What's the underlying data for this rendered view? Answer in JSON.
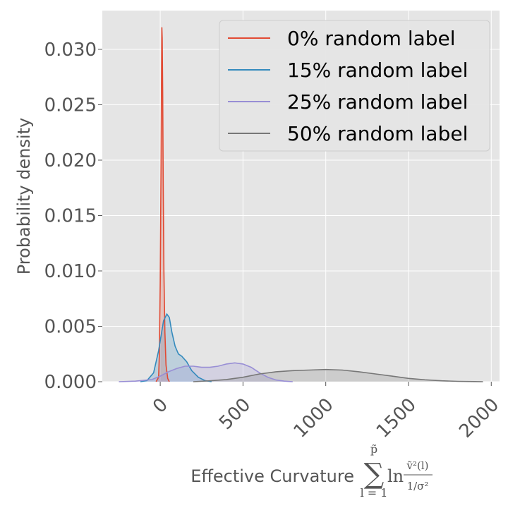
{
  "chart_data": {
    "type": "area",
    "xlabel": "Effective Curvature",
    "xlabel_math": {
      "sum_symbol": "∑",
      "sum_upper": "p̃",
      "sum_lower": "l = 1",
      "ln": "ln",
      "frac_num": "ṽ²(l)",
      "frac_den": "1/σ²"
    },
    "ylabel": "Probability density",
    "xlim": [
      -350,
      2050
    ],
    "ylim": [
      0,
      0.0335
    ],
    "x_ticks": [
      0,
      500,
      1000,
      1500,
      2000
    ],
    "x_tick_labels": [
      "0",
      "500",
      "1000",
      "1500",
      "2000"
    ],
    "y_ticks": [
      0,
      0.005,
      0.01,
      0.015,
      0.02,
      0.025,
      0.03
    ],
    "y_tick_labels": [
      "0.000",
      "0.005",
      "0.010",
      "0.015",
      "0.020",
      "0.025",
      "0.030"
    ],
    "grid": true,
    "legend_position": "top-right",
    "series": [
      {
        "name": "0% random label",
        "color": "#E24A33",
        "x": [
          -25,
          -10,
          -5,
          0,
          5,
          8,
          10,
          12,
          15,
          18,
          22,
          28,
          35,
          45,
          55
        ],
        "y": [
          0,
          0.0004,
          0.0025,
          0.009,
          0.02,
          0.028,
          0.032,
          0.031,
          0.026,
          0.018,
          0.01,
          0.0045,
          0.0015,
          0.0003,
          0
        ]
      },
      {
        "name": "15% random label",
        "color": "#348ABD",
        "x": [
          -120,
          -80,
          -40,
          -10,
          20,
          40,
          55,
          70,
          90,
          110,
          130,
          160,
          190,
          230,
          270,
          310
        ],
        "y": [
          0,
          0.0001,
          0.0008,
          0.0028,
          0.0055,
          0.0061,
          0.0058,
          0.0045,
          0.0032,
          0.0025,
          0.0023,
          0.0018,
          0.001,
          0.0004,
          0.0001,
          0
        ]
      },
      {
        "name": "25% random label",
        "color": "#988ED5",
        "x": [
          -250,
          -150,
          -50,
          0,
          50,
          100,
          150,
          200,
          250,
          300,
          350,
          400,
          450,
          500,
          550,
          600,
          650,
          700,
          750,
          800
        ],
        "y": [
          0,
          5e-05,
          0.0002,
          0.0005,
          0.0009,
          0.0012,
          0.0014,
          0.0014,
          0.0013,
          0.0013,
          0.0014,
          0.0016,
          0.0017,
          0.0016,
          0.0013,
          0.0008,
          0.0004,
          0.00015,
          5e-05,
          0
        ]
      },
      {
        "name": "50% random label",
        "color": "#777777",
        "x": [
          200,
          300,
          400,
          500,
          600,
          700,
          800,
          900,
          1000,
          1100,
          1200,
          1300,
          1400,
          1500,
          1600,
          1700,
          1800,
          1900,
          1950
        ],
        "y": [
          0,
          8e-05,
          0.0002,
          0.0004,
          0.0007,
          0.0009,
          0.001,
          0.00105,
          0.0011,
          0.00105,
          0.0009,
          0.0007,
          0.0005,
          0.0003,
          0.00017,
          8e-05,
          3e-05,
          1e-05,
          0
        ]
      }
    ]
  }
}
